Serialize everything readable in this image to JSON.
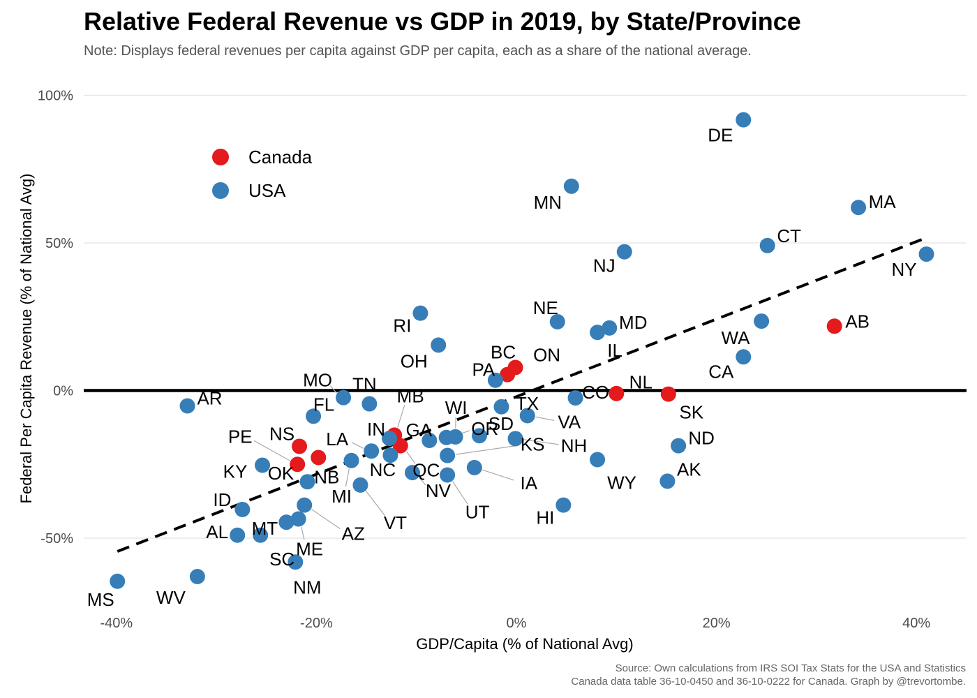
{
  "title": "Relative Federal Revenue vs GDP in 2019, by State/Province",
  "subtitle": "Note: Displays federal revenues per capita against GDP per capita, each as a share of the national average.",
  "caption": {
    "line1": "Source: Own calculations from IRS SOI Tax Stats for the USA and Statistics",
    "line2": "Canada data table 36-10-0450 and 36-10-0222 for Canada. Graph by @trevortombe."
  },
  "colors": {
    "Canada": "#e41a1c",
    "USA": "#377eb8"
  },
  "chart_data": {
    "type": "scatter",
    "title": "Relative Federal Revenue vs GDP in 2019, by State/Province",
    "xlabel": "GDP/Capita (% of National Avg)",
    "ylabel": "Federal Per Capita Revenue (% of National Avg)",
    "xlim": [
      -42,
      42
    ],
    "ylim": [
      -74,
      104
    ],
    "x_ticks": [
      {
        "value": -40,
        "label": "-40%"
      },
      {
        "value": -20,
        "label": "-20%"
      },
      {
        "value": 0,
        "label": "0%"
      },
      {
        "value": 20,
        "label": "20%"
      },
      {
        "value": 40,
        "label": "40%"
      }
    ],
    "y_ticks": [
      {
        "value": -50,
        "label": "-50%"
      },
      {
        "value": 0,
        "label": "0%"
      },
      {
        "value": 50,
        "label": "50%"
      },
      {
        "value": 100,
        "label": "100%"
      }
    ],
    "grid": true,
    "legend": {
      "placement": "top-left",
      "entries": [
        {
          "name": "Canada",
          "color": "#e41a1c"
        },
        {
          "name": "USA",
          "color": "#377eb8"
        }
      ]
    },
    "reference_line": {
      "y": 0
    },
    "trend_line": {
      "style": "dashed",
      "from": [
        -39.9,
        -54.5
      ],
      "to": [
        40.8,
        51.5
      ]
    },
    "series": [
      {
        "name": "Canada",
        "color": "#e41a1c",
        "points": [
          {
            "label": "AB",
            "x": 31.8,
            "y": 21.8
          },
          {
            "label": "BC",
            "x": -0.9,
            "y": 5.4
          },
          {
            "label": "ON",
            "x": -0.1,
            "y": 7.8
          },
          {
            "label": "NL",
            "x": 10.0,
            "y": -1.0
          },
          {
            "label": "SK",
            "x": 15.2,
            "y": -1.2
          },
          {
            "label": "MB",
            "x": -12.2,
            "y": -15.1
          },
          {
            "label": "QC",
            "x": -11.6,
            "y": -18.7
          },
          {
            "label": "NS",
            "x": -21.7,
            "y": -18.9
          },
          {
            "label": "PE",
            "x": -21.9,
            "y": -25.0
          },
          {
            "label": "NB",
            "x": -19.8,
            "y": -22.7
          }
        ]
      },
      {
        "name": "USA",
        "color": "#377eb8",
        "points": [
          {
            "label": "DE",
            "x": 22.7,
            "y": 91.7
          },
          {
            "label": "MA",
            "x": 34.2,
            "y": 62.0
          },
          {
            "label": "MN",
            "x": 5.5,
            "y": 69.2
          },
          {
            "label": "CT",
            "x": 25.1,
            "y": 49.1
          },
          {
            "label": "NY",
            "x": 41.0,
            "y": 46.2
          },
          {
            "label": "NJ",
            "x": 10.8,
            "y": 47.0
          },
          {
            "label": "NE",
            "x": 4.1,
            "y": 23.3
          },
          {
            "label": "MD",
            "x": 9.3,
            "y": 21.2
          },
          {
            "label": "IL",
            "x": 8.1,
            "y": 19.7
          },
          {
            "label": "WA",
            "x": 24.5,
            "y": 23.5
          },
          {
            "label": "CA",
            "x": 22.7,
            "y": 11.4
          },
          {
            "label": "RI",
            "x": -9.6,
            "y": 26.2
          },
          {
            "label": "OH",
            "x": -7.8,
            "y": 15.4
          },
          {
            "label": "PA",
            "x": -2.1,
            "y": 3.5
          },
          {
            "label": "CO",
            "x": 5.9,
            "y": -2.5
          },
          {
            "label": "TX",
            "x": -1.5,
            "y": -5.5
          },
          {
            "label": "VA",
            "x": 1.1,
            "y": -8.5
          },
          {
            "label": "AR",
            "x": -32.9,
            "y": -5.2
          },
          {
            "label": "MO",
            "x": -17.3,
            "y": -2.4
          },
          {
            "label": "TN",
            "x": -14.7,
            "y": -4.5
          },
          {
            "label": "FL",
            "x": -20.3,
            "y": -8.7
          },
          {
            "label": "IN",
            "x": -12.7,
            "y": -16.2
          },
          {
            "label": "WI",
            "x": -6.1,
            "y": -15.7
          },
          {
            "label": "SD",
            "x": -3.7,
            "y": -15.3
          },
          {
            "label": "GA",
            "x": -8.7,
            "y": -16.9
          },
          {
            "label": "NH",
            "x": -0.1,
            "y": -16.3
          },
          {
            "label": "KS",
            "x": -6.9,
            "y": -22.0
          },
          {
            "label": "LA",
            "x": -14.5,
            "y": -20.5
          },
          {
            "label": "NC",
            "x": -12.6,
            "y": -21.9
          },
          {
            "label": "MI",
            "x": -16.5,
            "y": -23.7
          },
          {
            "label": "KY",
            "x": -25.4,
            "y": -25.3
          },
          {
            "label": "OK",
            "x": -20.9,
            "y": -30.9
          },
          {
            "label": "VT",
            "x": -15.6,
            "y": -32.0
          },
          {
            "label": "NV",
            "x": -10.4,
            "y": -27.8
          },
          {
            "label": "IA",
            "x": -4.2,
            "y": -26.1
          },
          {
            "label": "UT",
            "x": -6.9,
            "y": -28.6
          },
          {
            "label": "OR",
            "x": -7.0,
            "y": -15.9
          },
          {
            "label": "WY",
            "x": 8.1,
            "y": -23.4
          },
          {
            "label": "ND",
            "x": 16.2,
            "y": -18.7
          },
          {
            "label": "AK",
            "x": 15.1,
            "y": -30.7
          },
          {
            "label": "HI",
            "x": 4.7,
            "y": -38.8
          },
          {
            "label": "ID",
            "x": -27.4,
            "y": -40.3
          },
          {
            "label": "AZ",
            "x": -21.2,
            "y": -38.8
          },
          {
            "label": "MT",
            "x": -23.0,
            "y": -44.6
          },
          {
            "label": "ME",
            "x": -21.8,
            "y": -43.5
          },
          {
            "label": "AL",
            "x": -27.9,
            "y": -49.0
          },
          {
            "label": "SC",
            "x": -25.6,
            "y": -49.0
          },
          {
            "label": "NM",
            "x": -22.1,
            "y": -58.1
          },
          {
            "label": "MS",
            "x": -39.9,
            "y": -64.6
          },
          {
            "label": "WV",
            "x": -31.9,
            "y": -63.0
          }
        ]
      }
    ]
  }
}
